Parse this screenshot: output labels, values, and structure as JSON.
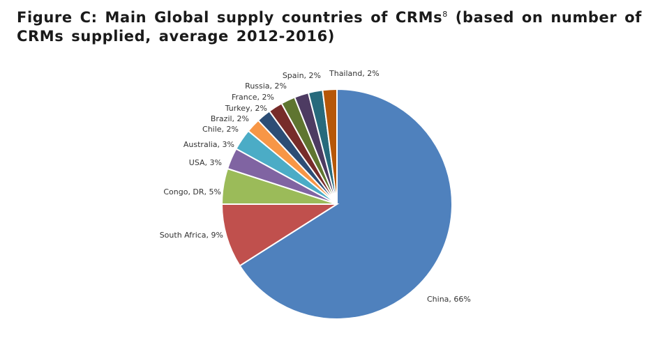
{
  "figure": {
    "title_main": "Figure C: Main Global supply countries of CRMs",
    "title_ref": "8",
    "title_rest": " (based on number of CRMs supplied, average 2012-2016)"
  },
  "chart_data": {
    "type": "pie",
    "title": "Figure C: Main Global supply countries of CRMs8 (based on number of CRMs supplied, average 2012-2016)",
    "legend": "none",
    "slices": [
      {
        "label": "China",
        "value": 66,
        "display": "China, 66%",
        "color": "#4f81bd"
      },
      {
        "label": "South Africa",
        "value": 9,
        "display": "South Africa, 9%",
        "color": "#c0504d"
      },
      {
        "label": "Congo, DR",
        "value": 5,
        "display": "Congo, DR, 5%",
        "color": "#9bbb59"
      },
      {
        "label": "USA",
        "value": 3,
        "display": "USA, 3%",
        "color": "#8064a2"
      },
      {
        "label": "Australia",
        "value": 3,
        "display": "Australia, 3%",
        "color": "#4bacc6"
      },
      {
        "label": "Chile",
        "value": 2,
        "display": "Chile, 2%",
        "color": "#f79646"
      },
      {
        "label": "Brazil",
        "value": 2,
        "display": "Brazil, 2%",
        "color": "#2c4d75"
      },
      {
        "label": "Turkey",
        "value": 2,
        "display": "Turkey, 2%",
        "color": "#772c2a"
      },
      {
        "label": "France",
        "value": 2,
        "display": "France, 2%",
        "color": "#5f7530"
      },
      {
        "label": "Russia",
        "value": 2,
        "display": "Russia, 2%",
        "color": "#4d3b62"
      },
      {
        "label": "Spain",
        "value": 2,
        "display": "Spain, 2%",
        "color": "#276a7c"
      },
      {
        "label": "Thailand",
        "value": 2,
        "display": "Thailand, 2%",
        "color": "#b65708"
      }
    ]
  }
}
